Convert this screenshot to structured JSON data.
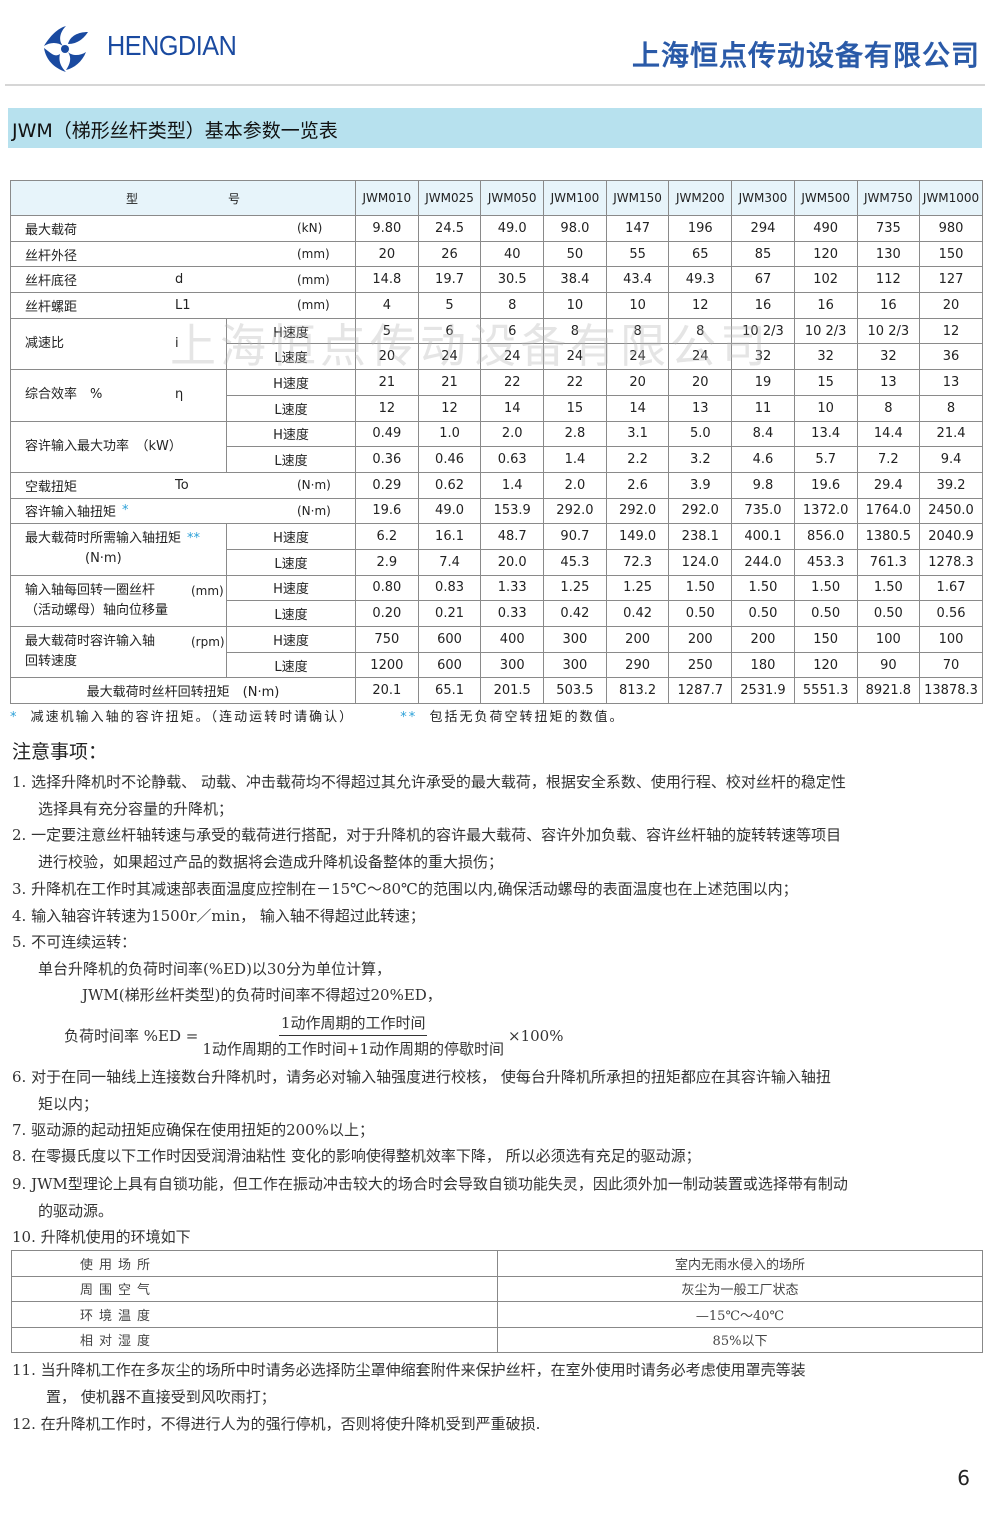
{
  "header": {
    "brand": "HENGDIAN",
    "company": "上海恒点传动设备有限公司",
    "brand_color": "#1a4aa0"
  },
  "title": "JWM（梯形丝杆类型）基本参数一览表",
  "watermark": "上海恒点传动设备有限公司",
  "table": {
    "head_left": "型",
    "head_right": "号",
    "models": [
      "JWM010",
      "JWM025",
      "JWM050",
      "JWM100",
      "JWM150",
      "JWM200",
      "JWM300",
      "JWM500",
      "JWM750",
      "JWM1000"
    ],
    "rows": [
      {
        "label": "最大载荷",
        "symbol": "",
        "unit": "(kN)",
        "values": [
          "9.80",
          "24.5",
          "49.0",
          "98.0",
          "147",
          "196",
          "294",
          "490",
          "735",
          "980"
        ]
      },
      {
        "label": "丝杆外径",
        "symbol": "",
        "unit": "(mm)",
        "values": [
          "20",
          "26",
          "40",
          "50",
          "55",
          "65",
          "85",
          "120",
          "130",
          "150"
        ]
      },
      {
        "label": "丝杆底径",
        "symbol": "d",
        "unit": "(mm)",
        "values": [
          "14.8",
          "19.7",
          "30.5",
          "38.4",
          "43.4",
          "49.3",
          "67",
          "102",
          "112",
          "127"
        ]
      },
      {
        "label": "丝杆螺距",
        "symbol": "L1",
        "unit": "(mm)",
        "values": [
          "4",
          "5",
          "8",
          "10",
          "10",
          "12",
          "16",
          "16",
          "16",
          "20"
        ]
      },
      {
        "label": "减速比",
        "symbol": "i",
        "unit": "",
        "sub": [
          {
            "speed": "H速度",
            "values": [
              "5",
              "6",
              "6",
              "8",
              "8",
              "8",
              "10 2/3",
              "10 2/3",
              "10 2/3",
              "12"
            ]
          },
          {
            "speed": "L速度",
            "values": [
              "20",
              "24",
              "24",
              "24",
              "24",
              "24",
              "32",
              "32",
              "32",
              "36"
            ]
          }
        ]
      },
      {
        "label": "综合效率　%",
        "symbol": "η",
        "unit": "",
        "sub": [
          {
            "speed": "H速度",
            "values": [
              "21",
              "21",
              "22",
              "22",
              "20",
              "20",
              "19",
              "15",
              "13",
              "13"
            ]
          },
          {
            "speed": "L速度",
            "values": [
              "12",
              "12",
              "14",
              "15",
              "14",
              "13",
              "11",
              "10",
              "8",
              "8"
            ]
          }
        ]
      },
      {
        "label": "容许输入最大功率　（kW）",
        "symbol": "",
        "unit": "",
        "sub": [
          {
            "speed": "H速度",
            "values": [
              "0.49",
              "1.0",
              "2.0",
              "2.8",
              "3.1",
              "5.0",
              "8.4",
              "13.4",
              "14.4",
              "21.4"
            ]
          },
          {
            "speed": "L速度",
            "values": [
              "0.36",
              "0.46",
              "0.63",
              "1.4",
              "2.2",
              "3.2",
              "4.6",
              "5.7",
              "7.2",
              "9.4"
            ]
          }
        ]
      },
      {
        "label": "空载扭矩",
        "symbol": "To",
        "unit": "(N·m)",
        "values": [
          "0.29",
          "0.62",
          "1.4",
          "2.0",
          "2.6",
          "3.9",
          "9.8",
          "19.6",
          "29.4",
          "39.2"
        ]
      },
      {
        "label": "容许输入轴扭矩",
        "mark": "*",
        "symbol": "",
        "unit": "(N·m)",
        "values": [
          "19.6",
          "49.0",
          "153.9",
          "292.0",
          "292.0",
          "292.0",
          "735.0",
          "1372.0",
          "1764.0",
          "2450.0"
        ]
      },
      {
        "label": "最大载荷时所需输入轴扭矩",
        "mark": "**",
        "line2": "(N·m)",
        "sub": [
          {
            "speed": "H速度",
            "values": [
              "6.2",
              "16.1",
              "48.7",
              "90.7",
              "149.0",
              "238.1",
              "400.1",
              "856.0",
              "1380.5",
              "2040.9"
            ]
          },
          {
            "speed": "L速度",
            "values": [
              "2.9",
              "7.4",
              "20.0",
              "45.3",
              "72.3",
              "124.0",
              "244.0",
              "453.3",
              "761.3",
              "1278.3"
            ]
          }
        ]
      },
      {
        "label": "输入轴每回转一圈丝杆",
        "unit": "(mm)",
        "line2": "（活动螺母）轴向位移量",
        "sub": [
          {
            "speed": "H速度",
            "values": [
              "0.80",
              "0.83",
              "1.33",
              "1.25",
              "1.25",
              "1.50",
              "1.50",
              "1.50",
              "1.50",
              "1.67"
            ]
          },
          {
            "speed": "L速度",
            "values": [
              "0.20",
              "0.21",
              "0.33",
              "0.42",
              "0.42",
              "0.50",
              "0.50",
              "0.50",
              "0.50",
              "0.56"
            ]
          }
        ]
      },
      {
        "label": "最大载荷时容许输入轴",
        "unit": "(rpm)",
        "line2": "回转速度",
        "sub": [
          {
            "speed": "H速度",
            "values": [
              "750",
              "600",
              "400",
              "300",
              "200",
              "200",
              "200",
              "150",
              "100",
              "100"
            ]
          },
          {
            "speed": "L速度",
            "values": [
              "1200",
              "600",
              "300",
              "300",
              "290",
              "250",
              "180",
              "120",
              "90",
              "70"
            ]
          }
        ]
      },
      {
        "label": "最大载荷时丝杆回转扭矩　(N·m)",
        "centered": true,
        "values": [
          "20.1",
          "65.1",
          "201.5",
          "503.5",
          "813.2",
          "1287.7",
          "2531.9",
          "5551.3",
          "8921.8",
          "13878.3"
        ]
      }
    ]
  },
  "footnotes": {
    "mark1": "*",
    "text1": "减速机输入轴的容许扭矩。（连动运转时请确认）",
    "mark2": "**",
    "text2": "包括无负荷空转扭矩的数值。",
    "mark_color": "#2aa0d8"
  },
  "notes_title": "注意事项：",
  "notes": [
    {
      "lines": [
        "1. 选择升降机时不论静载、 动载、冲击载荷均不得超过其允许承受的最大载荷，根据安全系数、使用行程、校对丝杆的稳定性",
        "选择具有充分容量的升降机；"
      ]
    },
    {
      "lines": [
        "2. 一定要注意丝杆轴转速与承受的载荷进行搭配，对于升降机的容许最大载荷、容许外加负载、容许丝杆轴的旋转转速等项目",
        "进行校验，如果超过产品的数据将会造成升降机设备整体的重大损伤；"
      ]
    },
    {
      "lines": [
        "3. 升降机在工作时其减速部表面温度应控制在－15℃～80℃的范围以内,确保活动螺母的表面温度也在上述范围以内；"
      ]
    },
    {
      "lines": [
        "4. 输入轴容许转速为1500r／min， 输入轴不得超过此转速；"
      ]
    },
    {
      "lines": [
        "5. 不可连续运转：",
        "单台升降机的负荷时间率(%ED)以30分为单位计算，",
        "JWM(梯形丝杆类型)的负荷时间率不得超过20%ED，"
      ]
    },
    {
      "lines": [
        "6. 对于在同一轴线上连接数台升降机时，请务必对输入轴强度进行校核， 使每台升降机所承担的扭矩都应在其容许输入轴扭",
        "矩以内；"
      ]
    },
    {
      "lines": [
        "7. 驱动源的起动扭矩应确保在使用扭矩的200%以上；"
      ]
    },
    {
      "lines": [
        "8. 在零摄氏度以下工作时因受润滑油粘性 变化的影响使得整机效率下降， 所以必须选有充足的驱动源；"
      ]
    },
    {
      "lines": [
        "9. JWM型理论上具有自锁功能，但工作在振动冲击较大的场合时会导致自锁功能失灵，因此须外加一制动装置或选择带有制动",
        "的驱动源。"
      ]
    },
    {
      "lines": [
        "10. 升降机使用的环境如下"
      ]
    },
    {
      "lines": [
        "11. 当升降机工作在多灰尘的场所中时请务必选择防尘罩伸缩套附件来保护丝杆，在室外使用时请务必考虑使用罩壳等装",
        "置， 使机器不直接受到风吹雨打；"
      ]
    },
    {
      "lines": [
        "12. 在升降机工作时，不得进行人为的强行停机，否则将使升降机受到严重破损."
      ]
    }
  ],
  "formula": {
    "lhs": "负荷时间率 %ED =",
    "numerator": "1动作周期的工作时间",
    "denominator": "1动作周期的工作时间+1动作周期的停歇时间",
    "rhs": "×100%"
  },
  "environment": [
    {
      "key": "使用场所",
      "value": "室内无雨水侵入的场所"
    },
    {
      "key": "周围空气",
      "value": "灰尘为一般工厂状态"
    },
    {
      "key": "环境温度",
      "value": "—15℃～40℃"
    },
    {
      "key": "相对湿度",
      "value": "85%以下"
    }
  ],
  "page_number": "6"
}
